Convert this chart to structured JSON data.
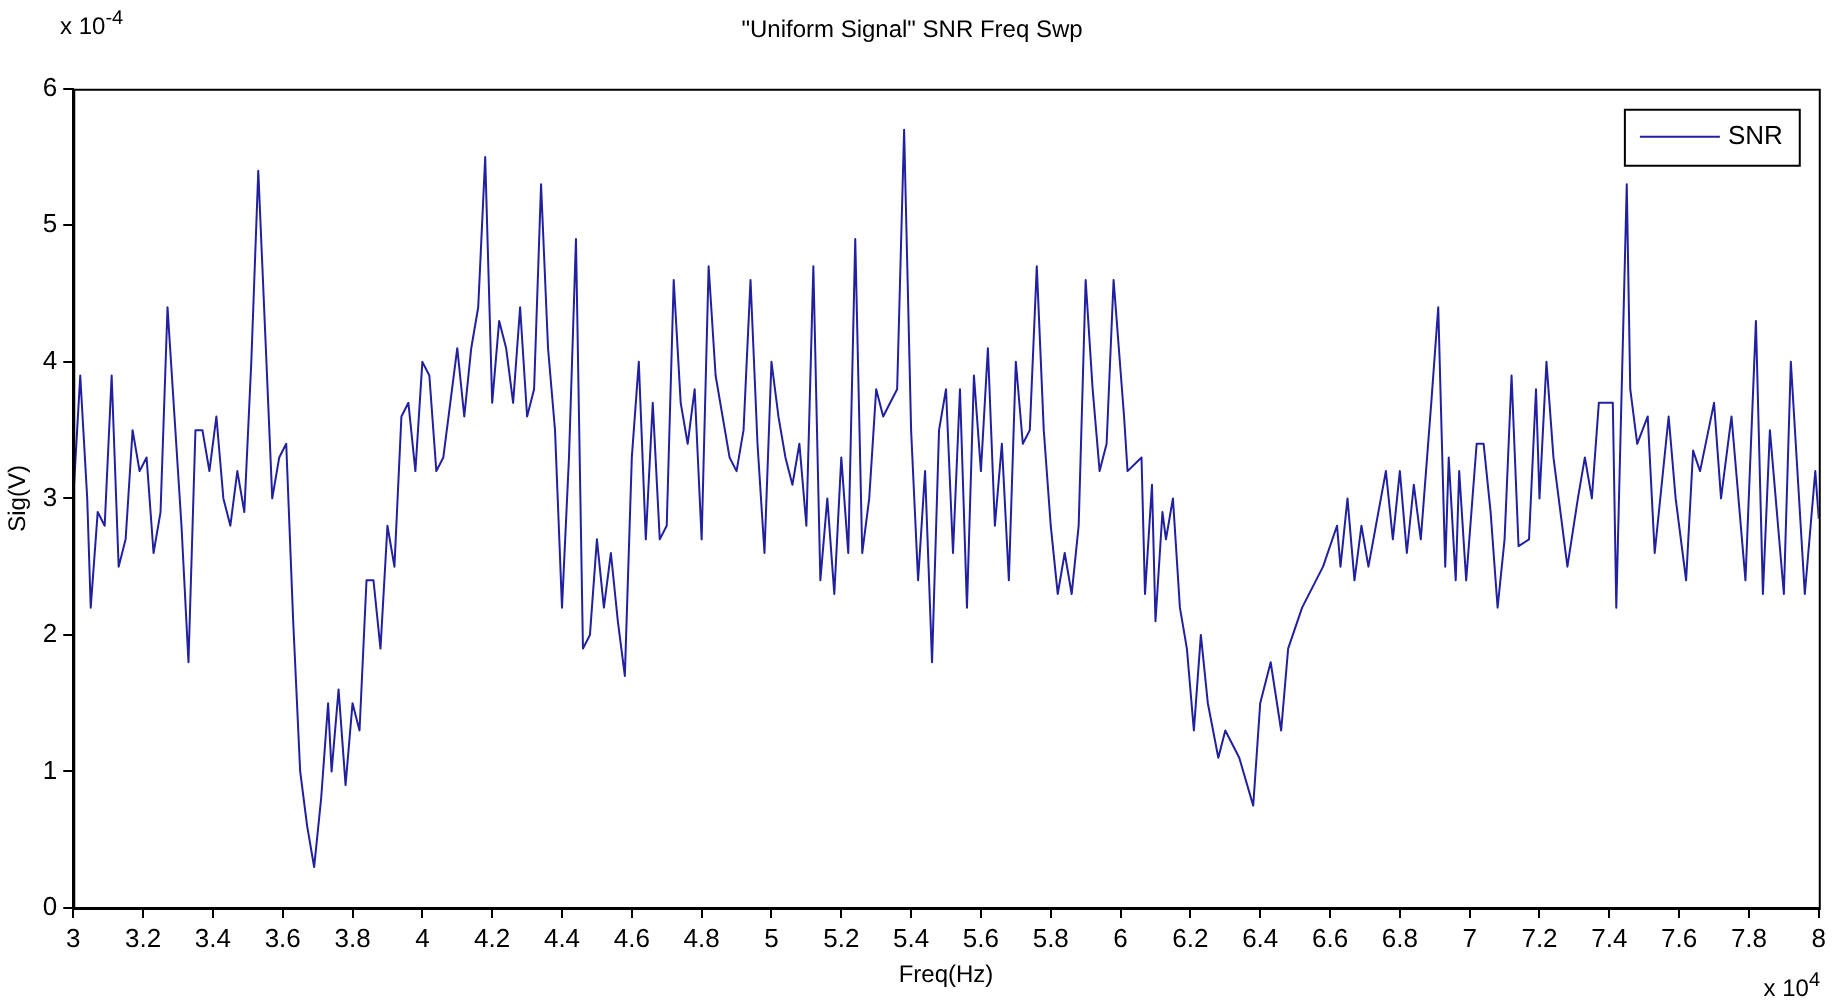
{
  "chart_data": {
    "type": "line",
    "title": "\"Uniform Signal\" SNR Freq Swp",
    "xlabel": "Freq(Hz)",
    "ylabel": "Sig(V)",
    "annotations": [
      "x 10$^{4}$",
      "x 10$^{-4}$"
    ],
    "xlim": [
      3,
      8
    ],
    "xticks": [
      3,
      3.2,
      3.4,
      3.6,
      3.8,
      4,
      4.2,
      4.4,
      4.6,
      4.8,
      5,
      5.2,
      5.4,
      5.6,
      5.8,
      6,
      6.2,
      6.4,
      6.6,
      6.8,
      7,
      7.2,
      7.4,
      7.6,
      7.8,
      8
    ],
    "ylim": [
      0,
      6
    ],
    "yticks": [
      0,
      1,
      2,
      3,
      4,
      5,
      6
    ],
    "grid": false,
    "legend": "top right",
    "marker": "none",
    "line_style": "solid",
    "x": [
      3.0,
      3.02,
      3.04,
      3.05,
      3.07,
      3.09,
      3.11,
      3.13,
      3.15,
      3.17,
      3.19,
      3.21,
      3.23,
      3.25,
      3.27,
      3.29,
      3.31,
      3.33,
      3.35,
      3.37,
      3.39,
      3.41,
      3.43,
      3.45,
      3.47,
      3.49,
      3.51,
      3.53,
      3.55,
      3.57,
      3.59,
      3.61,
      3.63,
      3.65,
      3.67,
      3.69,
      3.71,
      3.73,
      3.74,
      3.76,
      3.78,
      3.8,
      3.82,
      3.84,
      3.86,
      3.88,
      3.9,
      3.92,
      3.94,
      3.96,
      3.98,
      4.0,
      4.02,
      4.04,
      4.06,
      4.08,
      4.1,
      4.12,
      4.14,
      4.16,
      4.18,
      4.2,
      4.22,
      4.24,
      4.26,
      4.28,
      4.3,
      4.32,
      4.34,
      4.36,
      4.38,
      4.4,
      4.42,
      4.44,
      4.46,
      4.48,
      4.5,
      4.52,
      4.54,
      4.56,
      4.58,
      4.6,
      4.62,
      4.64,
      4.66,
      4.68,
      4.7,
      4.72,
      4.74,
      4.76,
      4.78,
      4.8,
      4.82,
      4.84,
      4.86,
      4.88,
      4.9,
      4.92,
      4.94,
      4.96,
      4.98,
      5.0,
      5.02,
      5.04,
      5.06,
      5.08,
      5.1,
      5.12,
      5.14,
      5.16,
      5.18,
      5.2,
      5.22,
      5.24,
      5.26,
      5.28,
      5.3,
      5.32,
      5.34,
      5.36,
      5.38,
      5.4,
      5.42,
      5.44,
      5.46,
      5.48,
      5.5,
      5.52,
      5.54,
      5.56,
      5.58,
      5.6,
      5.62,
      5.64,
      5.66,
      5.68,
      5.7,
      5.72,
      5.74,
      5.76,
      5.78,
      5.8,
      5.82,
      5.84,
      5.86,
      5.88,
      5.9,
      5.92,
      5.94,
      5.96,
      5.98,
      6.01,
      6.02,
      6.06,
      6.07,
      6.09,
      6.1,
      6.12,
      6.13,
      6.15,
      6.17,
      6.19,
      6.21,
      6.23,
      6.25,
      6.28,
      6.3,
      6.34,
      6.38,
      6.4,
      6.43,
      6.46,
      6.48,
      6.52,
      6.58,
      6.62,
      6.63,
      6.65,
      6.67,
      6.69,
      6.71,
      6.76,
      6.78,
      6.8,
      6.82,
      6.84,
      6.86,
      6.89,
      6.91,
      6.93,
      6.94,
      6.96,
      6.97,
      6.99,
      7.02,
      7.04,
      7.06,
      7.08,
      7.1,
      7.12,
      7.14,
      7.17,
      7.19,
      7.2,
      7.22,
      7.24,
      7.28,
      7.31,
      7.33,
      7.35,
      7.37,
      7.41,
      7.42,
      7.45,
      7.46,
      7.48,
      7.51,
      7.53,
      7.57,
      7.59,
      7.62,
      7.64,
      7.66,
      7.7,
      7.72,
      7.75,
      7.79,
      7.82,
      7.84,
      7.86,
      7.9,
      7.92,
      7.96,
      7.99,
      8.0
    ],
    "series": [
      {
        "name": "SNR",
        "color": "#2020a0",
        "values": [
          3.0,
          3.9,
          3.0,
          2.2,
          2.9,
          2.8,
          3.9,
          2.5,
          2.7,
          3.5,
          3.2,
          3.3,
          2.6,
          2.9,
          4.4,
          3.6,
          2.8,
          1.8,
          3.5,
          3.5,
          3.2,
          3.6,
          3.0,
          2.8,
          3.2,
          2.9,
          4.0,
          5.4,
          4.2,
          3.0,
          3.3,
          3.4,
          2.1,
          1.0,
          0.6,
          0.3,
          0.8,
          1.5,
          1.0,
          1.6,
          0.9,
          1.5,
          1.3,
          2.4,
          2.4,
          1.9,
          2.8,
          2.5,
          3.6,
          3.7,
          3.2,
          4.0,
          3.9,
          3.2,
          3.3,
          3.7,
          4.1,
          3.6,
          4.1,
          4.4,
          5.5,
          3.7,
          4.3,
          4.1,
          3.7,
          4.4,
          3.6,
          3.8,
          5.3,
          4.1,
          3.5,
          2.2,
          3.3,
          4.9,
          1.9,
          2.0,
          2.7,
          2.2,
          2.6,
          2.1,
          1.7,
          3.3,
          4.0,
          2.7,
          3.7,
          2.7,
          2.8,
          4.6,
          3.7,
          3.4,
          3.8,
          2.7,
          4.7,
          3.9,
          3.6,
          3.3,
          3.2,
          3.5,
          4.6,
          3.4,
          2.6,
          4.0,
          3.6,
          3.3,
          3.1,
          3.4,
          2.8,
          4.7,
          2.4,
          3.0,
          2.3,
          3.3,
          2.6,
          4.9,
          2.6,
          3.0,
          3.8,
          3.6,
          3.7,
          3.8,
          5.7,
          3.5,
          2.4,
          3.2,
          1.8,
          3.5,
          3.8,
          2.6,
          3.8,
          2.2,
          3.9,
          3.2,
          4.1,
          2.8,
          3.4,
          2.4,
          4.0,
          3.4,
          3.5,
          4.7,
          3.5,
          2.8,
          2.3,
          2.6,
          2.3,
          2.8,
          4.6,
          3.8,
          3.2,
          3.4,
          4.6,
          3.6,
          3.2,
          3.3,
          2.3,
          3.1,
          2.1,
          2.9,
          2.7,
          3.0,
          2.2,
          1.9,
          1.3,
          2.0,
          1.5,
          1.1,
          1.3,
          1.1,
          0.75,
          1.5,
          1.8,
          1.3,
          1.9,
          2.2,
          2.5,
          2.8,
          2.5,
          3.0,
          2.4,
          2.8,
          2.5,
          3.2,
          2.7,
          3.2,
          2.6,
          3.1,
          2.7,
          3.7,
          4.4,
          2.5,
          3.3,
          2.4,
          3.2,
          2.4,
          3.4,
          3.4,
          2.9,
          2.2,
          2.7,
          3.9,
          2.65,
          2.7,
          3.8,
          3.0,
          4.0,
          3.3,
          2.5,
          3.0,
          3.3,
          3.0,
          3.7,
          3.7,
          2.2,
          5.3,
          3.8,
          3.4,
          3.6,
          2.6,
          3.6,
          3.0,
          2.4,
          3.35,
          3.2,
          3.7,
          3.0,
          3.6,
          2.4,
          4.3,
          2.3,
          3.5,
          2.3,
          4.0,
          2.3,
          3.2,
          2.85
        ]
      }
    ]
  }
}
